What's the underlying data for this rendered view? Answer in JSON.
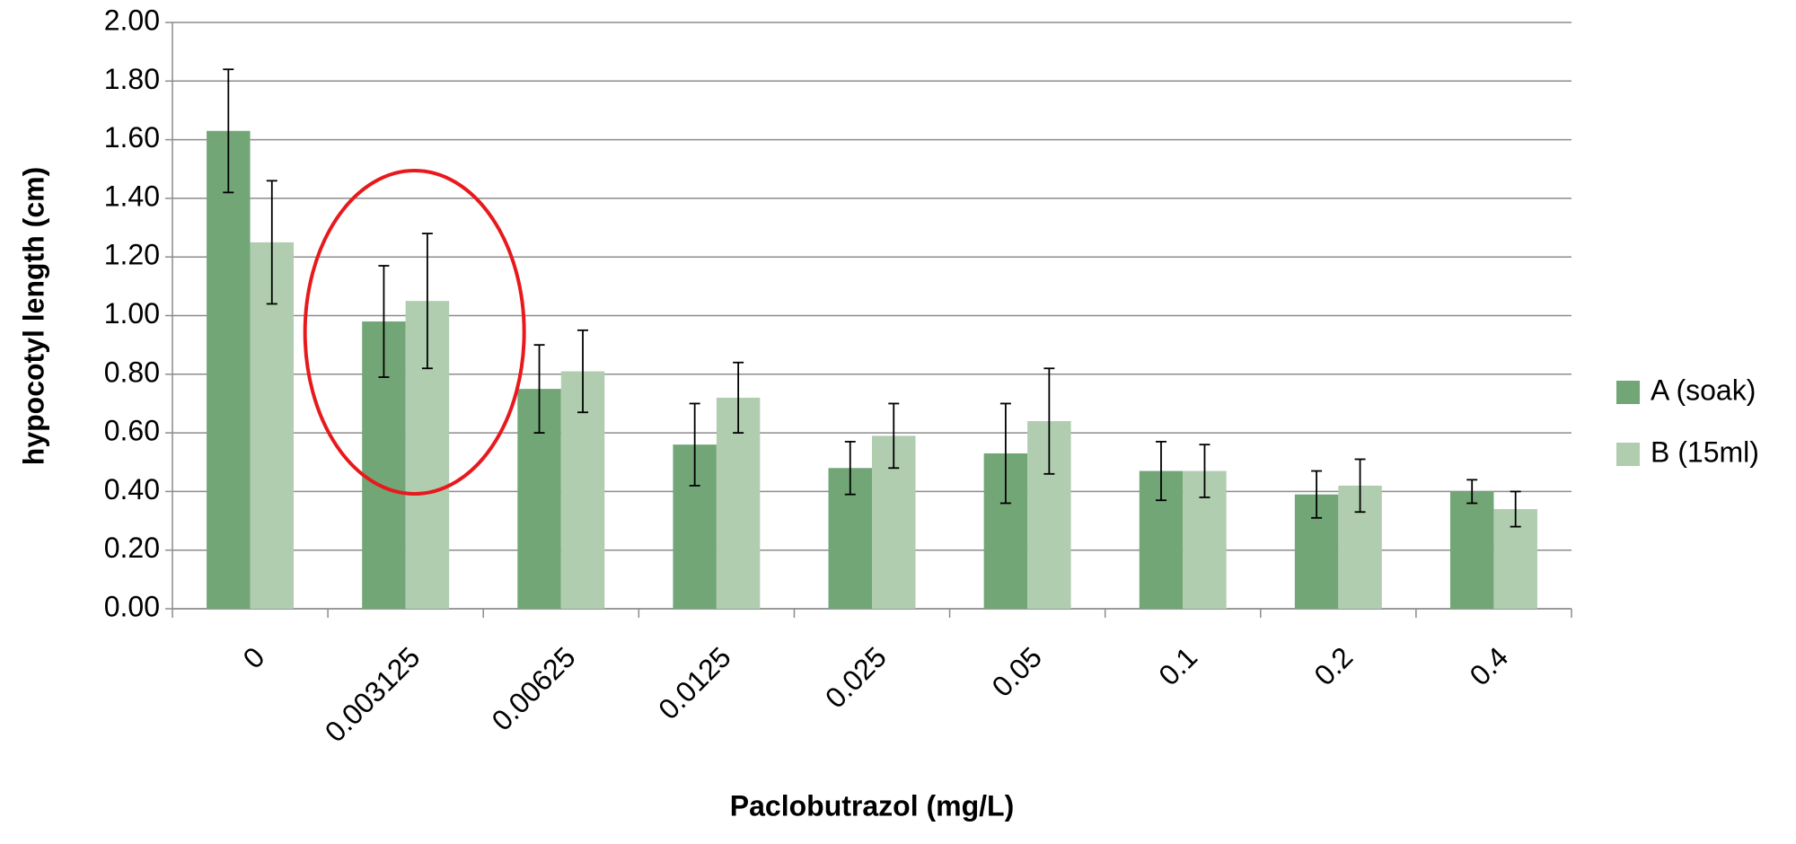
{
  "chart_data": {
    "type": "bar",
    "xlabel": "Paclobutrazol (mg/L)",
    "ylabel": "hypocotyl length (cm)",
    "categories": [
      "0",
      "0.003125",
      "0.00625",
      "0.0125",
      "0.025",
      "0.05",
      "0.1",
      "0.2",
      "0.4"
    ],
    "series": [
      {
        "name": "A (soak)",
        "color": "#72a677",
        "values": [
          1.63,
          0.98,
          0.75,
          0.56,
          0.48,
          0.53,
          0.47,
          0.39,
          0.4
        ],
        "errors": [
          0.21,
          0.19,
          0.15,
          0.14,
          0.09,
          0.17,
          0.1,
          0.08,
          0.04
        ]
      },
      {
        "name": "B (15ml)",
        "color": "#b0cdb0",
        "values": [
          1.25,
          1.05,
          0.81,
          0.72,
          0.59,
          0.64,
          0.47,
          0.42,
          0.34
        ],
        "errors": [
          0.21,
          0.23,
          0.14,
          0.12,
          0.11,
          0.18,
          0.09,
          0.09,
          0.06
        ]
      }
    ],
    "ylim": [
      0,
      2
    ],
    "yticks": [
      {
        "value": 0,
        "label": "0.00"
      },
      {
        "value": 0.2,
        "label": "0.20"
      },
      {
        "value": 0.4,
        "label": "0.40"
      },
      {
        "value": 0.6,
        "label": "0.60"
      },
      {
        "value": 0.8,
        "label": "0.80"
      },
      {
        "value": 1,
        "label": "1.00"
      },
      {
        "value": 1.2,
        "label": "1.20"
      },
      {
        "value": 1.4,
        "label": "1.40"
      },
      {
        "value": 1.6,
        "label": "1.60"
      },
      {
        "value": 1.8,
        "label": "1.80"
      },
      {
        "value": 2,
        "label": "2.00"
      }
    ],
    "grid": true,
    "legend": "right"
  }
}
